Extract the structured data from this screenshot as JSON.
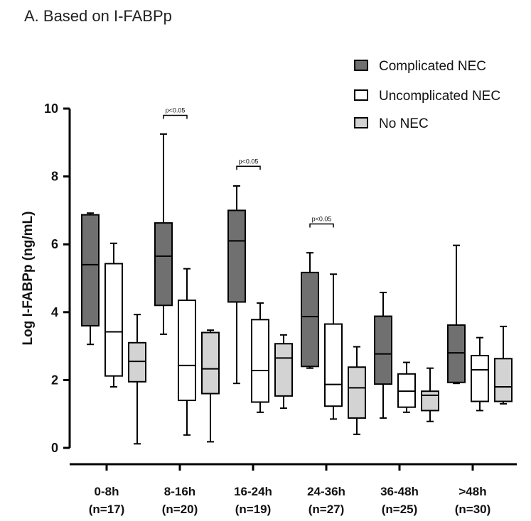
{
  "chart_data": {
    "type": "boxplot",
    "title": "A. Based on I-FABPp",
    "ylabel": "Log I-FABPp (ng/mL)",
    "ylim": [
      0,
      10
    ],
    "yticks": [
      "0",
      "2",
      "4",
      "6",
      "8",
      "10"
    ],
    "categories": [
      {
        "time": "0-8h",
        "n": "(n=17)"
      },
      {
        "time": "8-16h",
        "n": "(n=20)"
      },
      {
        "time": "16-24h",
        "n": "(n=19)"
      },
      {
        "time": "24-36h",
        "n": "(n=27)"
      },
      {
        "time": "36-48h",
        "n": "(n=25)"
      },
      {
        "time": ">48h",
        "n": "(n=30)"
      }
    ],
    "series": [
      {
        "name": "Complicated NEC",
        "color": "#707070",
        "boxes": [
          {
            "min": 3.05,
            "q1": 3.6,
            "median": 5.4,
            "q3": 6.87,
            "max": 6.92
          },
          {
            "min": 3.35,
            "q1": 4.2,
            "median": 5.65,
            "q3": 6.63,
            "max": 9.25
          },
          {
            "min": 1.9,
            "q1": 4.3,
            "median": 6.1,
            "q3": 7.0,
            "max": 7.72
          },
          {
            "min": 2.35,
            "q1": 2.4,
            "median": 3.87,
            "q3": 5.17,
            "max": 5.75
          },
          {
            "min": 0.88,
            "q1": 1.88,
            "median": 2.77,
            "q3": 3.88,
            "max": 4.58
          },
          {
            "min": 1.9,
            "q1": 1.93,
            "median": 2.8,
            "q3": 3.62,
            "max": 5.97
          }
        ]
      },
      {
        "name": "Uncomplicated NEC",
        "color": "#ffffff",
        "boxes": [
          {
            "min": 1.8,
            "q1": 2.12,
            "median": 3.42,
            "q3": 5.43,
            "max": 6.03
          },
          {
            "min": 0.38,
            "q1": 1.4,
            "median": 2.43,
            "q3": 4.35,
            "max": 5.28
          },
          {
            "min": 1.05,
            "q1": 1.35,
            "median": 2.28,
            "q3": 3.78,
            "max": 4.27
          },
          {
            "min": 0.85,
            "q1": 1.23,
            "median": 1.87,
            "q3": 3.65,
            "max": 5.12
          },
          {
            "min": 1.05,
            "q1": 1.2,
            "median": 1.67,
            "q3": 2.18,
            "max": 2.52
          },
          {
            "min": 1.1,
            "q1": 1.37,
            "median": 2.3,
            "q3": 2.72,
            "max": 3.25
          }
        ]
      },
      {
        "name": "No NEC",
        "color": "#d3d3d3",
        "boxes": [
          {
            "min": 0.12,
            "q1": 1.95,
            "median": 2.55,
            "q3": 3.1,
            "max": 3.93
          },
          {
            "min": 0.18,
            "q1": 1.6,
            "median": 2.33,
            "q3": 3.4,
            "max": 3.47
          },
          {
            "min": 1.17,
            "q1": 1.53,
            "median": 2.65,
            "q3": 3.07,
            "max": 3.33
          },
          {
            "min": 0.4,
            "q1": 0.88,
            "median": 1.77,
            "q3": 2.38,
            "max": 2.98
          },
          {
            "min": 0.78,
            "q1": 1.1,
            "median": 1.55,
            "q3": 1.67,
            "max": 2.35
          },
          {
            "min": 1.3,
            "q1": 1.37,
            "median": 1.8,
            "q3": 2.63,
            "max": 3.58
          }
        ]
      }
    ],
    "annotations": [
      {
        "text": "p<0.05",
        "category": 1,
        "y": 9.8
      },
      {
        "text": "p<0.05",
        "category": 2,
        "y": 8.3
      },
      {
        "text": "p<0.05",
        "category": 3,
        "y": 6.6
      }
    ],
    "legend_position": "top-right"
  }
}
